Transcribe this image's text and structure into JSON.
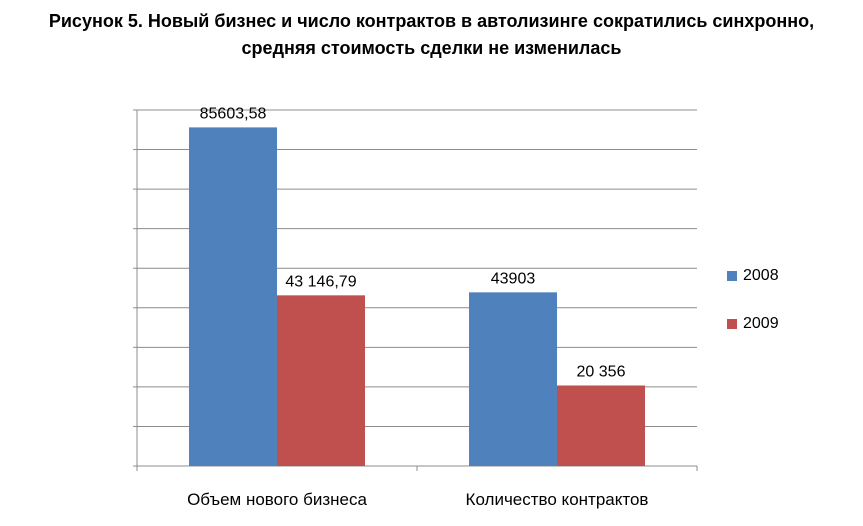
{
  "chart_data": {
    "type": "bar",
    "title_line1": "Рисунок 5. Новый бизнес и число контрактов  в автолизинге сократились синхронно,",
    "title_line2": "средняя стоимость сделки не изменилась",
    "categories": [
      "Объем нового бизнеса",
      "Количество контрактов"
    ],
    "series": [
      {
        "name": "2008",
        "color": "#4F81BD",
        "values": [
          85603.58,
          43903
        ],
        "labels": [
          "85603,58",
          "43903"
        ]
      },
      {
        "name": "2009",
        "color": "#C0504D",
        "values": [
          43146.79,
          20356
        ],
        "labels": [
          "43 146,79",
          "20 356"
        ]
      }
    ],
    "ylim": [
      0,
      90000
    ],
    "grid": true,
    "legend_position": "right"
  }
}
